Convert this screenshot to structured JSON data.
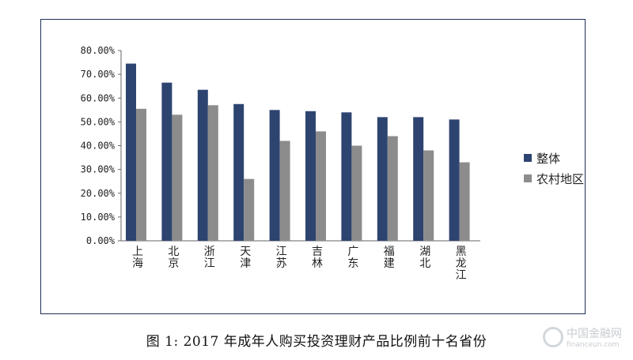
{
  "chart_data": {
    "type": "bar",
    "categories": [
      "上海",
      "北京",
      "浙江",
      "天津",
      "江苏",
      "吉林",
      "广东",
      "福建",
      "湖北",
      "黑龙江"
    ],
    "series": [
      {
        "name": "整体",
        "color": "#2e4470",
        "values": [
          74.5,
          66.5,
          63.5,
          57.5,
          55,
          54.5,
          54,
          52,
          52,
          51
        ]
      },
      {
        "name": "农村地区",
        "color": "#8c8c8c",
        "values": [
          55.5,
          53,
          57,
          26,
          42,
          46,
          40,
          44,
          38,
          33
        ]
      }
    ],
    "yticks": [
      "0.00%",
      "10.00%",
      "20.00%",
      "30.00%",
      "40.00%",
      "50.00%",
      "60.00%",
      "70.00%",
      "80.00%"
    ],
    "ylim": [
      0,
      80
    ],
    "grid": false,
    "legend_position": "right"
  },
  "caption": "图 1: 2017 年成年人购买投资理财产品比例前十名省份",
  "watermark": {
    "cn": "中国金融网",
    "en": "financeun.com"
  }
}
